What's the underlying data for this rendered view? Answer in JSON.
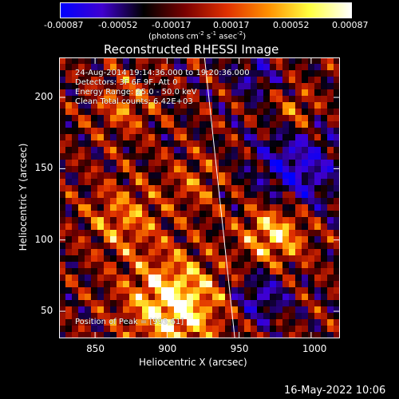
{
  "colorbar": {
    "tick_labels": [
      "-0.00087",
      "-0.00052",
      "-0.00017",
      "0.00017",
      "0.00052",
      "0.00087"
    ],
    "units_pre": "(photons cm",
    "units_sup1": "-2",
    "units_mid1": " s",
    "units_sup2": "-1",
    "units_mid2": " asec",
    "units_sup3": "-2",
    "units_post": ")",
    "colors": [
      "#0000ff",
      "#4000d0",
      "#000000",
      "#7a0000",
      "#e03000",
      "#ff9000",
      "#ffff40",
      "#ffffff"
    ]
  },
  "chart_data": {
    "type": "heatmap",
    "title": "Reconstructed RHESSI Image",
    "xlabel": "Heliocentric X (arcsec)",
    "ylabel": "Heliocentric Y (arcsec)",
    "xlim": [
      825,
      1020
    ],
    "ylim": [
      31,
      228
    ],
    "x_ticks": [
      850,
      900,
      950,
      1000
    ],
    "y_ticks": [
      50,
      100,
      150,
      200
    ],
    "value_range": [
      -0.00087,
      0.00087
    ],
    "limb_line": [
      [
        926,
        228
      ],
      [
        947,
        31
      ]
    ],
    "annotations": [
      "24-Aug-2014 19:14:36.000 to 19:20:36.000",
      "Detectors: 3F 6F 9F, Att 0",
      "Energy Range: 25.0 - 50.0 keV",
      "Clean     Total counts: 6.42E+03"
    ],
    "peak_label": "Position of Peak = [995.61]",
    "hot_regions": [
      {
        "x": 905,
        "y": 55,
        "r": 32,
        "v": 0.00087
      },
      {
        "x": 975,
        "y": 105,
        "r": 22,
        "v": 0.0007
      },
      {
        "x": 870,
        "y": 115,
        "r": 25,
        "v": 0.00045
      },
      {
        "x": 990,
        "y": 190,
        "r": 15,
        "v": 0.0004
      },
      {
        "x": 870,
        "y": 195,
        "r": 20,
        "v": 0.0004
      },
      {
        "x": 920,
        "y": 140,
        "r": 20,
        "v": 0.0003
      }
    ],
    "cold_regions": [
      {
        "x": 990,
        "y": 150,
        "r": 30,
        "v": -0.0006
      },
      {
        "x": 965,
        "y": 60,
        "r": 18,
        "v": -0.0005
      },
      {
        "x": 960,
        "y": 215,
        "r": 15,
        "v": -0.0004
      }
    ]
  },
  "footer": {
    "timestamp": "16-May-2022 10:06"
  }
}
